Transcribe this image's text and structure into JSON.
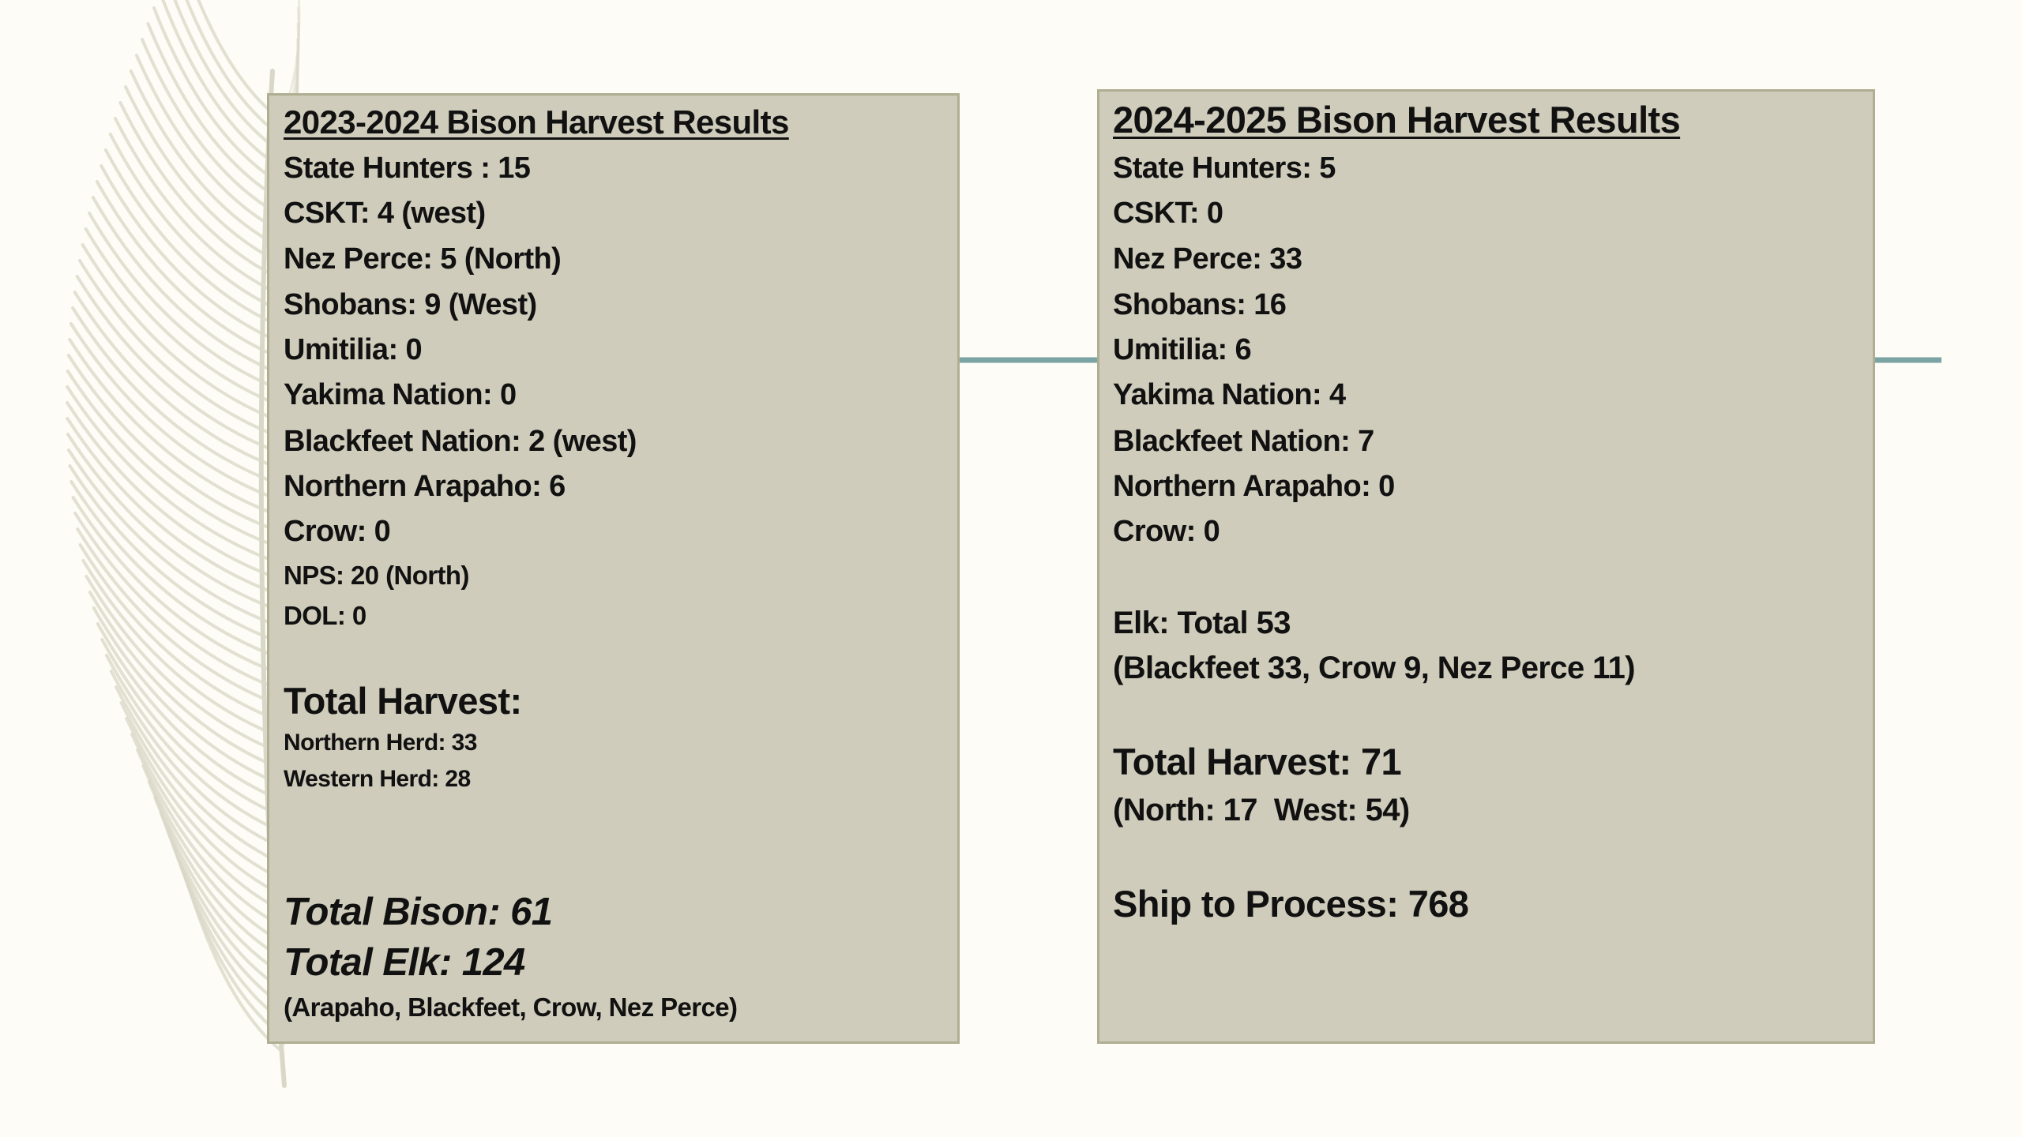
{
  "panels": [
    {
      "title": "2023-2024 Bison Harvest Results",
      "lines": [
        "State Hunters : 15",
        "CSKT: 4 (west)",
        "Nez Perce: 5 (North)",
        "Shobans: 9 (West)",
        "Umitilia: 0",
        "Yakima Nation: 0",
        "Blackfeet Nation: 2 (west)",
        "Northern Arapaho: 6",
        "Crow: 0",
        "NPS: 20 (North)",
        "DOL: 0",
        "Total Harvest:",
        "Northern Herd: 33",
        "Western Herd: 28",
        "Total Bison: 61",
        "Total Elk: 124",
        "(Arapaho, Blackfeet, Crow, Nez Perce)"
      ]
    },
    {
      "title": "2024-2025 Bison Harvest Results",
      "lines": [
        "State Hunters: 5",
        "CSKT: 0",
        "Nez Perce: 33",
        "Shobans: 16",
        "Umitilia: 6",
        "Yakima Nation: 4",
        "Blackfeet Nation: 7",
        "Northern Arapaho: 0",
        "Crow: 0",
        "Elk: Total 53",
        "(Blackfeet 33, Crow 9, Nez Perce 11)",
        "Total Harvest: 71",
        "(North: 17  West: 54)",
        "Ship to Process: 768"
      ]
    }
  ]
}
